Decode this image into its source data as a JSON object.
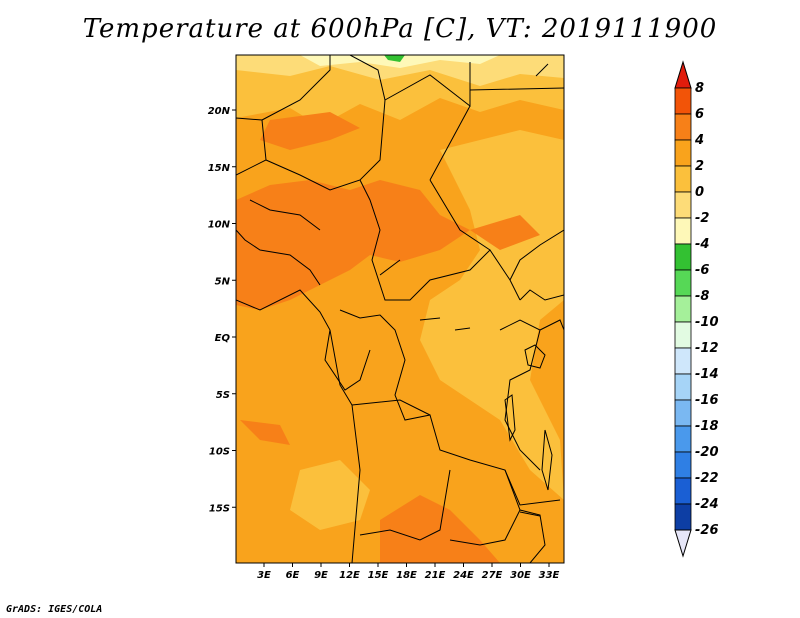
{
  "title": "Temperature at 600hPa [C], VT: 2019111900",
  "credit": "GrADS: IGES/COLA",
  "map": {
    "lat_ticks": [
      {
        "label": "20N",
        "lat": 20
      },
      {
        "label": "15N",
        "lat": 15
      },
      {
        "label": "10N",
        "lat": 10
      },
      {
        "label": "5N",
        "lat": 5
      },
      {
        "label": "EQ",
        "lat": 0
      },
      {
        "label": "5S",
        "lat": -5
      },
      {
        "label": "10S",
        "lat": -10
      },
      {
        "label": "15S",
        "lat": -15
      }
    ],
    "lon_ticks": [
      {
        "label": "3E",
        "lon": 3
      },
      {
        "label": "6E",
        "lon": 6
      },
      {
        "label": "9E",
        "lon": 9
      },
      {
        "label": "12E",
        "lon": 12
      },
      {
        "label": "15E",
        "lon": 15
      },
      {
        "label": "18E",
        "lon": 18
      },
      {
        "label": "21E",
        "lon": 21
      },
      {
        "label": "24E",
        "lon": 24
      },
      {
        "label": "27E",
        "lon": 27
      },
      {
        "label": "30E",
        "lon": 30
      },
      {
        "label": "33E",
        "lon": 33
      }
    ]
  },
  "colorbar": {
    "levels": [
      "8",
      "6",
      "4",
      "2",
      "0",
      "-2",
      "-4",
      "-6",
      "-8",
      "-10",
      "-12",
      "-14",
      "-16",
      "-18",
      "-20",
      "-22",
      "-24",
      "-26"
    ],
    "colors": [
      "#e11c0c",
      "#f25408",
      "#f78018",
      "#f9a31c",
      "#fbc03c",
      "#fddc78",
      "#fef8b8",
      "#33c132",
      "#56d856",
      "#a5f09a",
      "#e2fbe2",
      "#cfe7fb",
      "#a6d4f7",
      "#7ab8f2",
      "#4a99ec",
      "#2f7fe4",
      "#1a5fd4",
      "#0d3ea4",
      "#0a0e74",
      "#e6e6f8"
    ],
    "top_color": "#e11c0c",
    "bottom_color": "#e6e6f8"
  }
}
